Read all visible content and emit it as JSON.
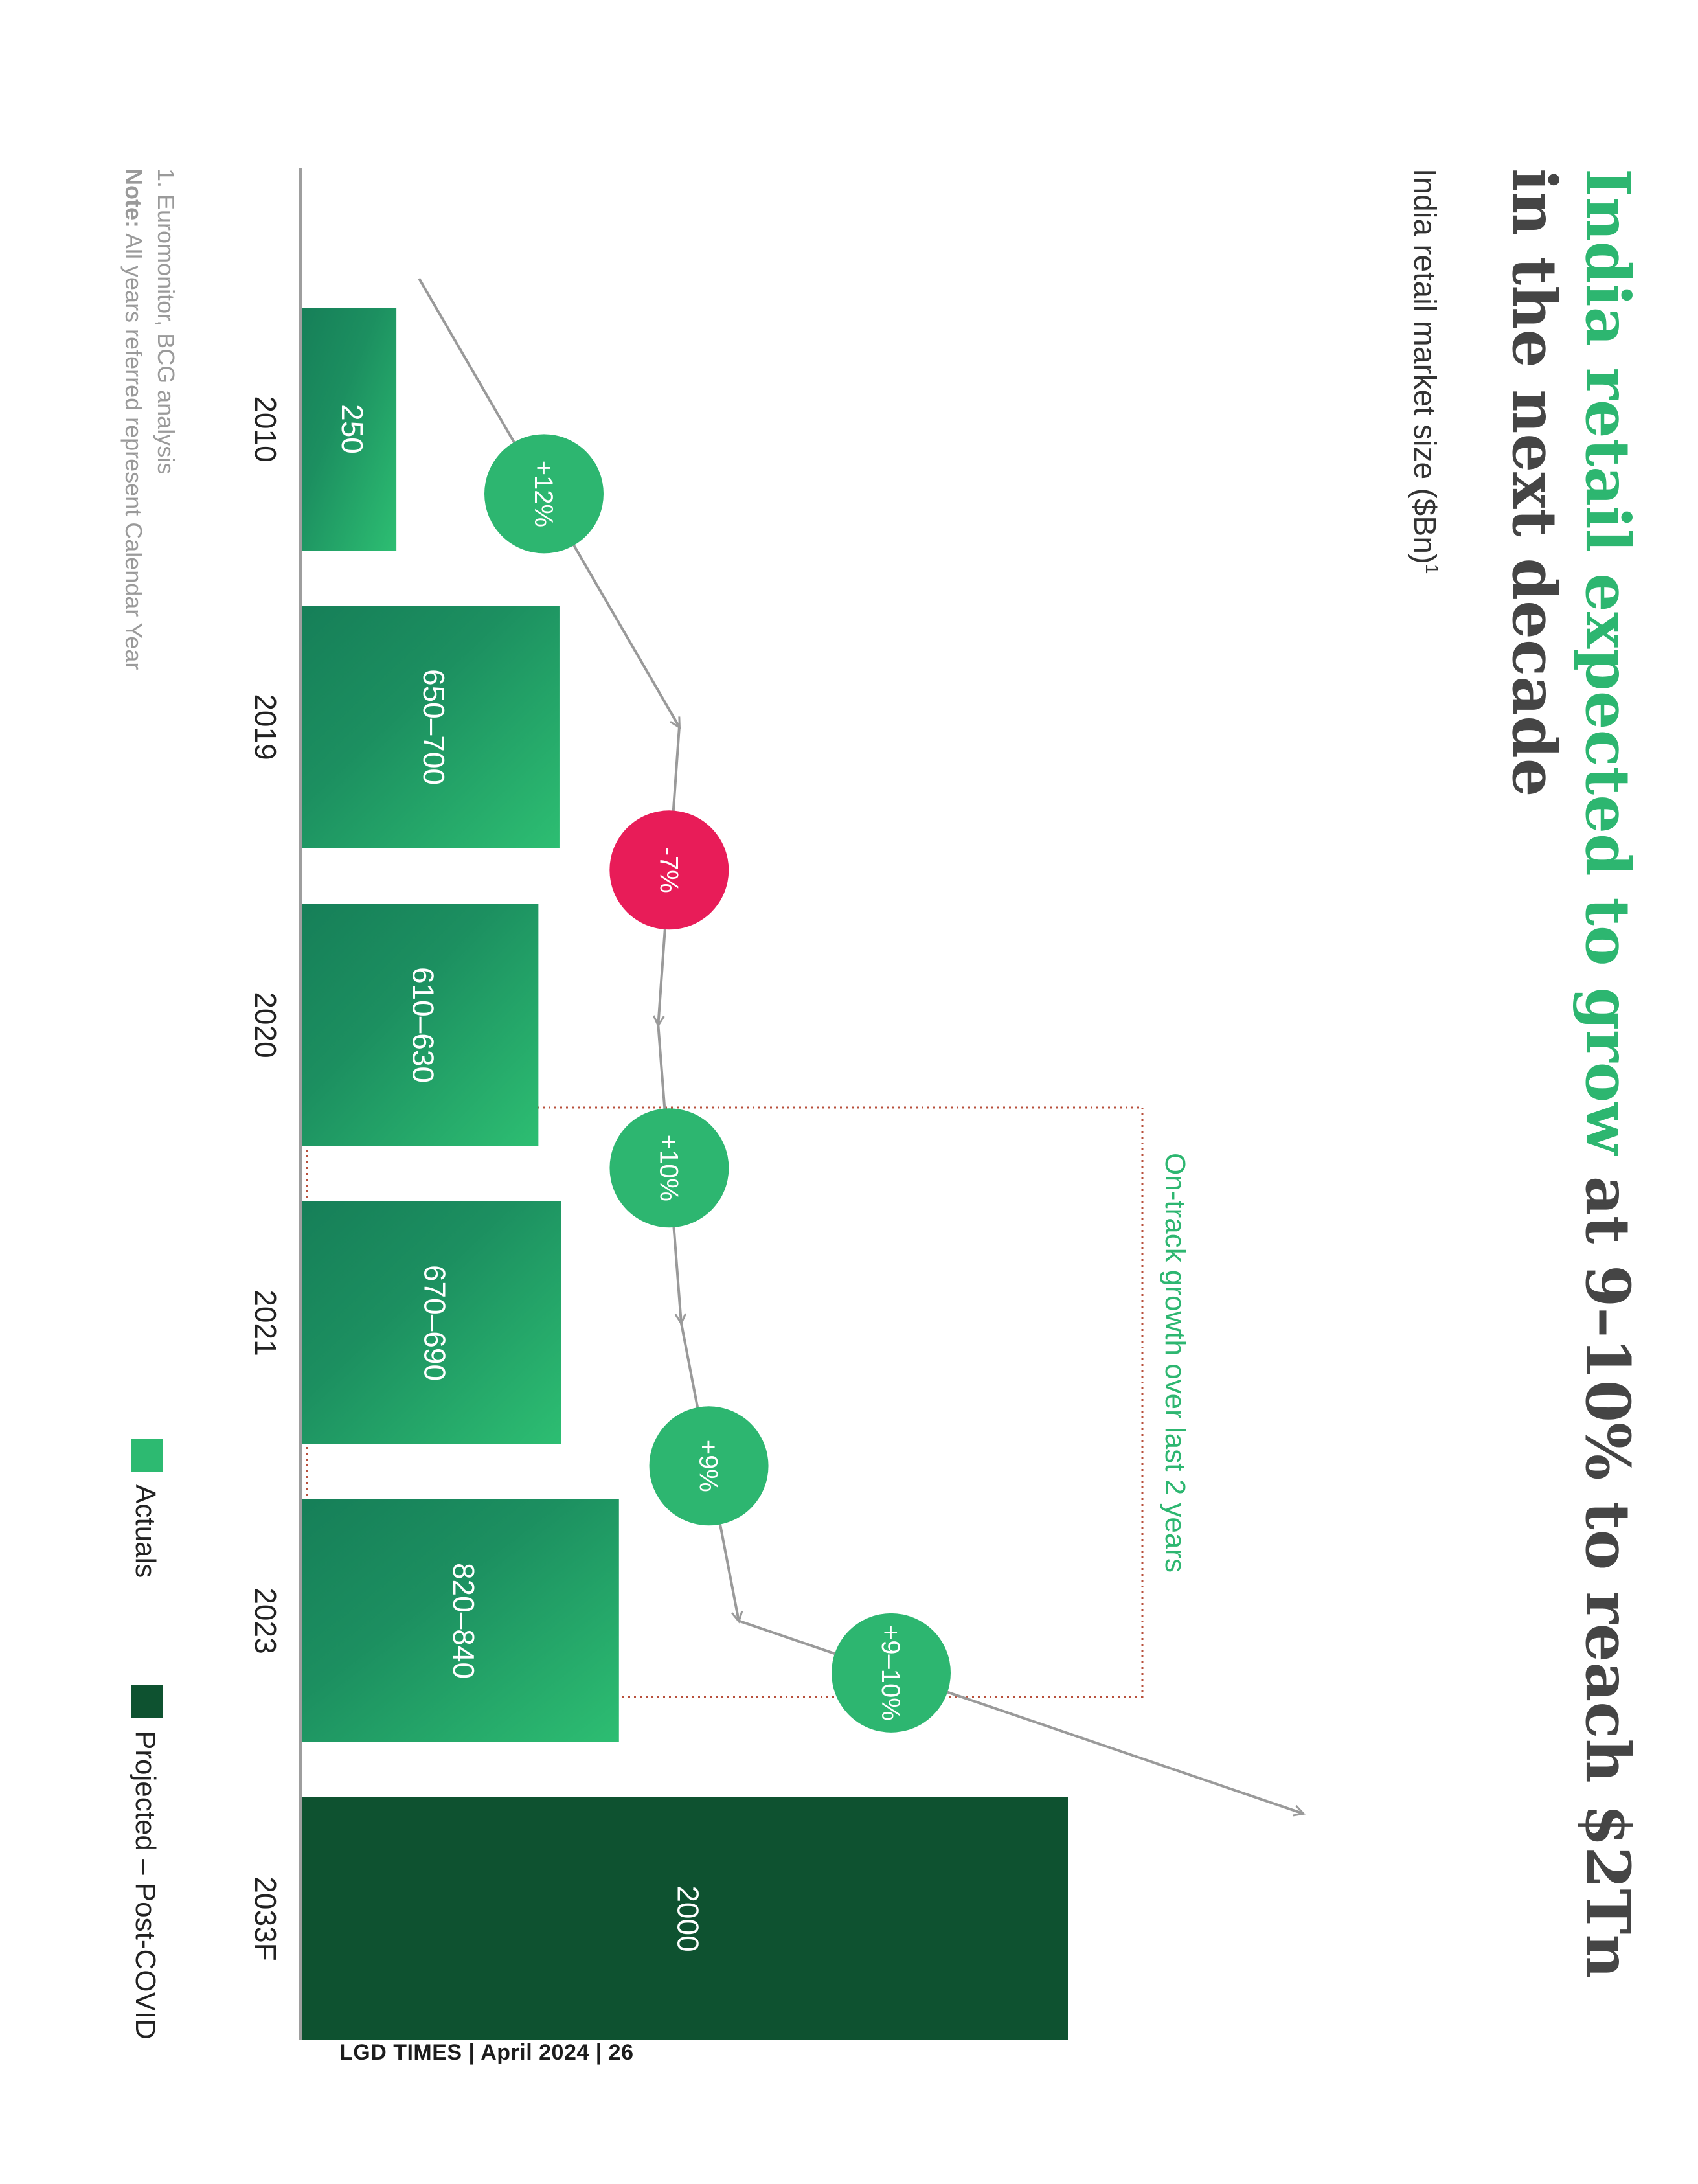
{
  "title": {
    "highlight": "India retail expected to grow",
    "rest_line1": " at 9–10% to reach $2Tn",
    "line2": "in the next decade"
  },
  "subtitle": "India retail market size ($Bn)",
  "subtitle_sup": "1",
  "chart_data": {
    "type": "bar",
    "categories": [
      "2010",
      "2019",
      "2020",
      "2021",
      "2023",
      "2033F"
    ],
    "values": [
      250,
      675,
      620,
      680,
      830,
      2000
    ],
    "ranges": [
      [
        250,
        250
      ],
      [
        650,
        700
      ],
      [
        610,
        630
      ],
      [
        670,
        690
      ],
      [
        820,
        840
      ],
      [
        2000,
        2000
      ]
    ],
    "bar_labels": [
      "250",
      "650–700",
      "610–630",
      "670–690",
      "820–840",
      "2000"
    ],
    "bar_kind": [
      "actual",
      "actual",
      "actual",
      "actual",
      "actual",
      "projected"
    ],
    "growth_labels": [
      "+12%",
      "-7%",
      "+10%",
      "+9%",
      "+9–10%"
    ],
    "growth_kind": [
      "positive",
      "negative",
      "positive",
      "positive",
      "positive"
    ],
    "annotation": "On-track growth over last 2 years",
    "legend": [
      {
        "label": "Actuals",
        "color": "#2dba71"
      },
      {
        "label": "Projected – Post-COVID",
        "color": "#0e5230"
      }
    ],
    "colors": {
      "actual_light": "#2dba71",
      "actual_dark": "#167f58",
      "projected": "#0e5230",
      "positive_bubble": "#2db670",
      "negative_bubble": "#e81c58",
      "title_green": "#2db670",
      "title_dark": "#454545",
      "annotation_box": "#b8503c"
    }
  },
  "footnotes": {
    "line1": "1. Euromonitor, BCG analysis",
    "note_label": "Note:",
    "note_text": " All years referred represent Calendar Year"
  },
  "footer": "LGD TIMES | April 2024 | 26"
}
